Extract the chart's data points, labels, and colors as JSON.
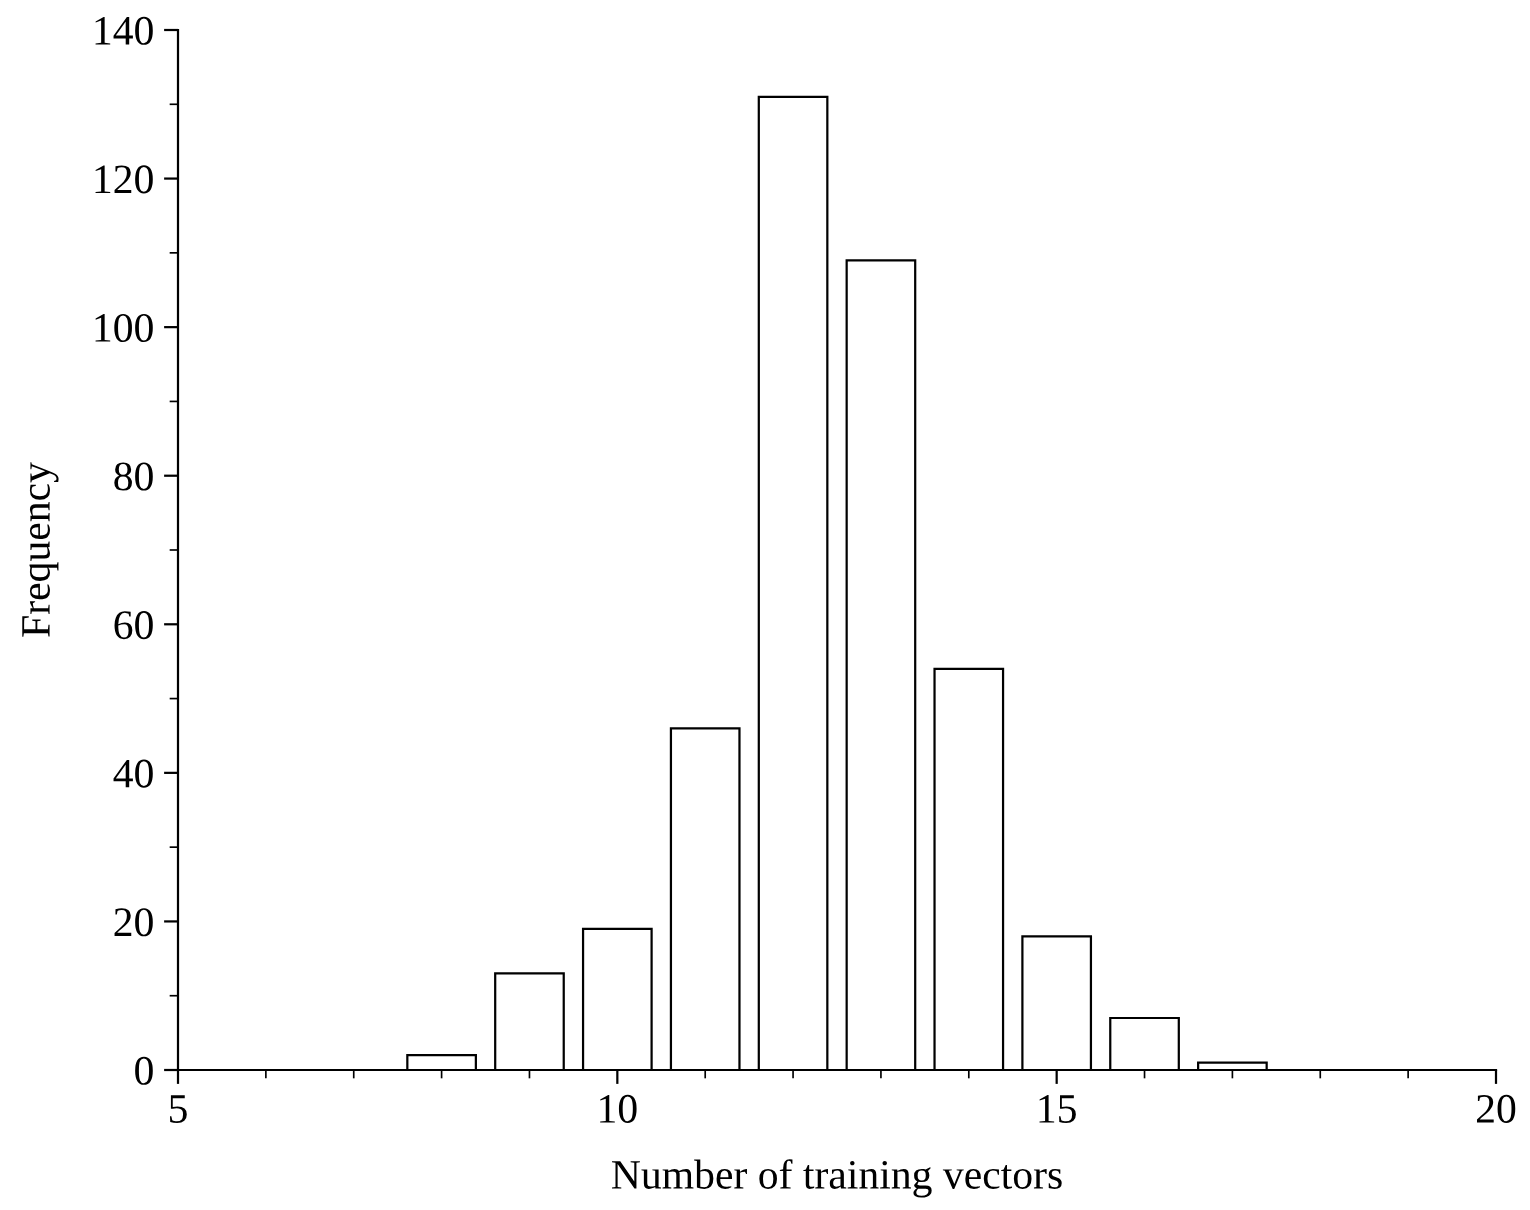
{
  "chart_data": {
    "type": "bar",
    "xlabel": "Number of training vectors",
    "ylabel": "Frequency",
    "x": [
      8,
      9,
      10,
      11,
      12,
      13,
      14,
      15,
      16,
      17
    ],
    "values": [
      2,
      13,
      19,
      46,
      131,
      109,
      54,
      18,
      7,
      1
    ],
    "color": "#ffffff",
    "xlim": [
      5,
      20
    ],
    "xticks": [
      5,
      10,
      15,
      20
    ],
    "ylim": [
      0,
      140
    ],
    "yticks": [
      0,
      20,
      40,
      60,
      80,
      100,
      120,
      140
    ],
    "grid": false,
    "legend": false
  }
}
